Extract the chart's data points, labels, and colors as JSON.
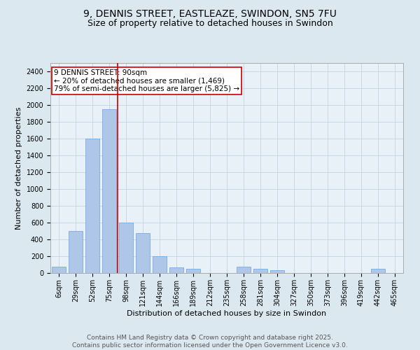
{
  "title_line1": "9, DENNIS STREET, EASTLEAZE, SWINDON, SN5 7FU",
  "title_line2": "Size of property relative to detached houses in Swindon",
  "xlabel": "Distribution of detached houses by size in Swindon",
  "ylabel": "Number of detached properties",
  "categories": [
    "6sqm",
    "29sqm",
    "52sqm",
    "75sqm",
    "98sqm",
    "121sqm",
    "144sqm",
    "166sqm",
    "189sqm",
    "212sqm",
    "235sqm",
    "258sqm",
    "281sqm",
    "304sqm",
    "327sqm",
    "350sqm",
    "373sqm",
    "396sqm",
    "419sqm",
    "442sqm",
    "465sqm"
  ],
  "values": [
    75,
    500,
    1600,
    1950,
    600,
    475,
    200,
    70,
    50,
    0,
    0,
    75,
    50,
    30,
    0,
    0,
    0,
    0,
    0,
    50,
    0
  ],
  "bar_color": "#aec6e8",
  "bar_edge_color": "#7aabe0",
  "vline_x_index": 3.5,
  "vline_color": "#cc0000",
  "annotation_text": "9 DENNIS STREET: 90sqm\n← 20% of detached houses are smaller (1,469)\n79% of semi-detached houses are larger (5,825) →",
  "annotation_box_color": "#ffffff",
  "annotation_box_edge_color": "#cc0000",
  "ylim": [
    0,
    2500
  ],
  "yticks": [
    0,
    200,
    400,
    600,
    800,
    1000,
    1200,
    1400,
    1600,
    1800,
    2000,
    2200,
    2400
  ],
  "grid_color": "#c8d8e8",
  "bg_color": "#dce8f0",
  "plot_bg_color": "#e8f0f8",
  "footer_text": "Contains HM Land Registry data © Crown copyright and database right 2025.\nContains public sector information licensed under the Open Government Licence v3.0.",
  "title_fontsize": 10,
  "subtitle_fontsize": 9,
  "axis_label_fontsize": 8,
  "tick_fontsize": 7,
  "annotation_fontsize": 7.5,
  "footer_fontsize": 6.5
}
